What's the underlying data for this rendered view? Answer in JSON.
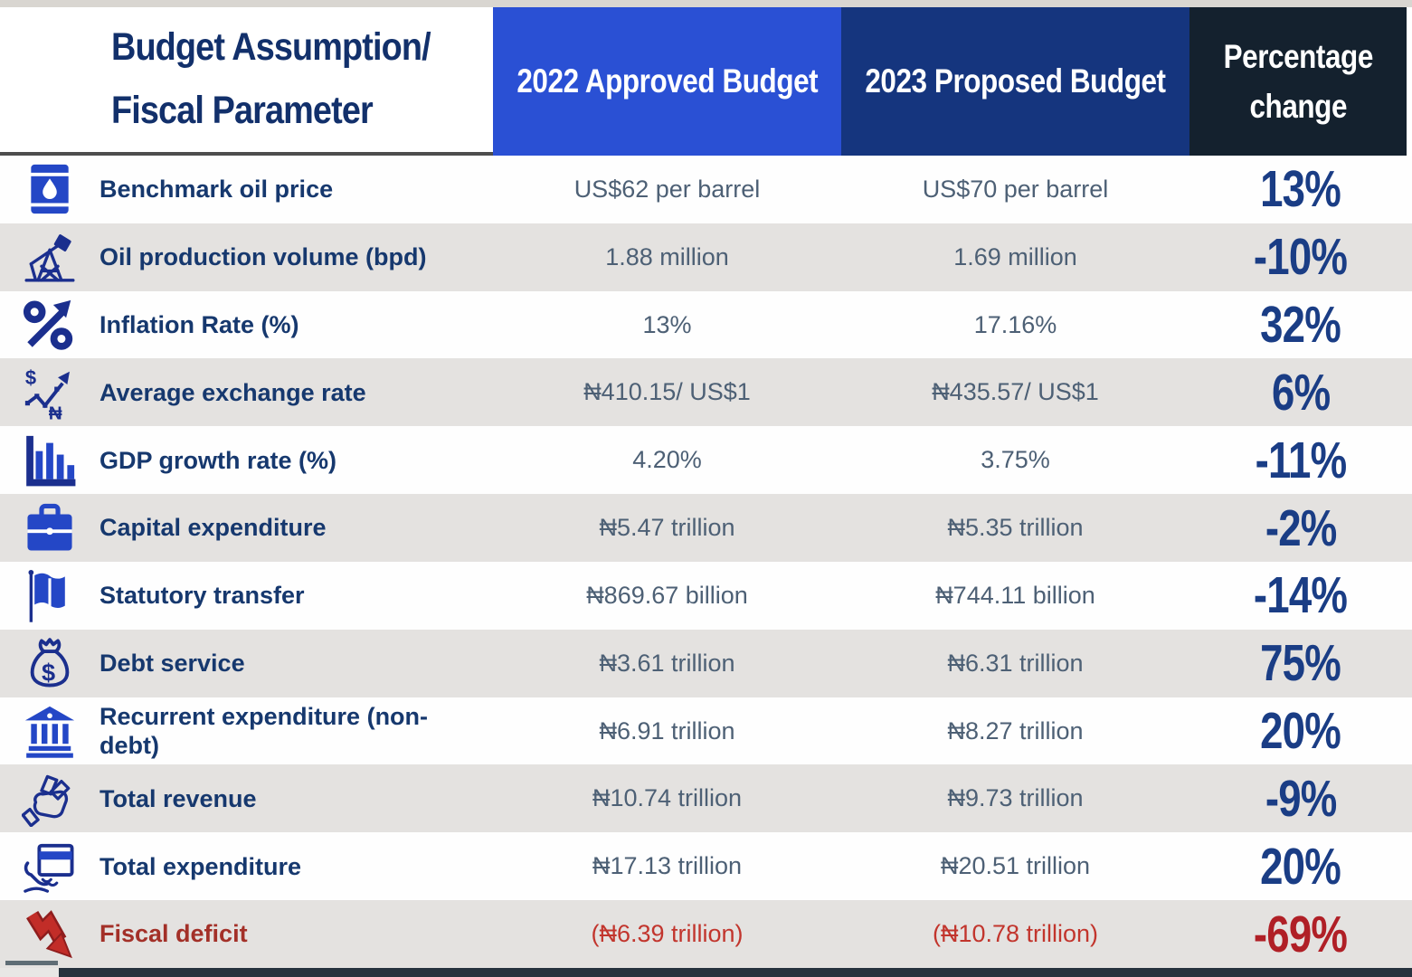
{
  "header": {
    "param_line1": "Budget Assumption/",
    "param_line2": "Fiscal Parameter",
    "col_2022": "2022 Approved Budget",
    "col_2023": "2023 Proposed Budget",
    "col_change_line1": "Percentage",
    "col_change_line2": "change"
  },
  "colors": {
    "header_2022_bg": "#2a50d4",
    "header_2023_bg": "#15357e",
    "header_change_bg": "#14212e",
    "row_alt_bg": "#e4e2e0",
    "label_navy": "#16386e",
    "value_slate": "#4d6075",
    "percent_navy": "#1a3d85",
    "deficit_red": "#b01f26",
    "icon_blue": "#2447c6",
    "icon_navy_stroke": "#1b2f8e"
  },
  "rows": [
    {
      "icon": "oil-barrel-icon",
      "label": "Benchmark oil price",
      "v2022": "US$62 per barrel",
      "v2023": "US$70 per barrel",
      "change": "13%",
      "deficit": false
    },
    {
      "icon": "oil-pump-icon",
      "label": "Oil production volume (bpd)",
      "v2022": "1.88 million",
      "v2023": "1.69 million",
      "change": "-10%",
      "deficit": false
    },
    {
      "icon": "percent-growth-icon",
      "label": "Inflation Rate (%)",
      "v2022": "13%",
      "v2023": "17.16%",
      "change": "32%",
      "deficit": false
    },
    {
      "icon": "exchange-rate-icon",
      "label": "Average exchange rate",
      "v2022": "₦410.15/ US$1",
      "v2023": "₦435.57/ US$1",
      "change": "6%",
      "deficit": false
    },
    {
      "icon": "bar-chart-icon",
      "label": "GDP growth rate (%)",
      "v2022": "4.20%",
      "v2023": "3.75%",
      "change": "-11%",
      "deficit": false
    },
    {
      "icon": "briefcase-icon",
      "label": "Capital expenditure",
      "v2022": "₦5.47 trillion",
      "v2023": "₦5.35 trillion",
      "change": "-2%",
      "deficit": false
    },
    {
      "icon": "flag-icon",
      "label": "Statutory transfer",
      "v2022": "₦869.67 billion",
      "v2023": "₦744.11 billion",
      "change": "-14%",
      "deficit": false
    },
    {
      "icon": "money-bag-icon",
      "label": "Debt service",
      "v2022": "₦3.61 trillion",
      "v2023": "₦6.31 trillion",
      "change": "75%",
      "deficit": false
    },
    {
      "icon": "bank-icon",
      "label": "Recurrent expenditure (non-debt)",
      "v2022": "₦6.91 trillion",
      "v2023": "₦8.27 trillion",
      "change": "20%",
      "deficit": false
    },
    {
      "icon": "hand-money-icon",
      "label": "Total revenue",
      "v2022": "₦10.74 trillion",
      "v2023": "₦9.73 trillion",
      "change": "-9%",
      "deficit": false
    },
    {
      "icon": "hand-card-icon",
      "label": "Total expenditure",
      "v2022": "₦17.13 trillion",
      "v2023": "₦20.51 trillion",
      "change": "20%",
      "deficit": false
    },
    {
      "icon": "red-arrow-down-icon",
      "label": "Fiscal deficit",
      "v2022": "(₦6.39 trillion)",
      "v2023": "(₦10.78 trillion)",
      "change": "-69%",
      "deficit": true
    }
  ],
  "chart_data": {
    "type": "table",
    "title": "Budget Assumption/Fiscal Parameter comparison",
    "columns": [
      "Budget Assumption/Fiscal Parameter",
      "2022 Approved Budget",
      "2023 Proposed Budget",
      "Percentage change"
    ],
    "rows": [
      [
        "Benchmark oil price",
        "US$62 per barrel",
        "US$70 per barrel",
        "13%"
      ],
      [
        "Oil production volume (bpd)",
        "1.88 million",
        "1.69 million",
        "-10%"
      ],
      [
        "Inflation Rate (%)",
        "13%",
        "17.16%",
        "32%"
      ],
      [
        "Average exchange rate",
        "₦410.15/ US$1",
        "₦435.57/ US$1",
        "6%"
      ],
      [
        "GDP growth rate (%)",
        "4.20%",
        "3.75%",
        "-11%"
      ],
      [
        "Capital expenditure",
        "₦5.47 trillion",
        "₦5.35 trillion",
        "-2%"
      ],
      [
        "Statutory transfer",
        "₦869.67 billion",
        "₦744.11 billion",
        "-14%"
      ],
      [
        "Debt service",
        "₦3.61 trillion",
        "₦6.31 trillion",
        "75%"
      ],
      [
        "Recurrent expenditure (non-debt)",
        "₦6.91 trillion",
        "₦8.27 trillion",
        "20%"
      ],
      [
        "Total revenue",
        "₦10.74 trillion",
        "₦9.73 trillion",
        "-9%"
      ],
      [
        "Total expenditure",
        "₦17.13 trillion",
        "₦20.51 trillion",
        "20%"
      ],
      [
        "Fiscal deficit",
        "(₦6.39 trillion)",
        "(₦10.78 trillion)",
        "-69%"
      ]
    ]
  }
}
